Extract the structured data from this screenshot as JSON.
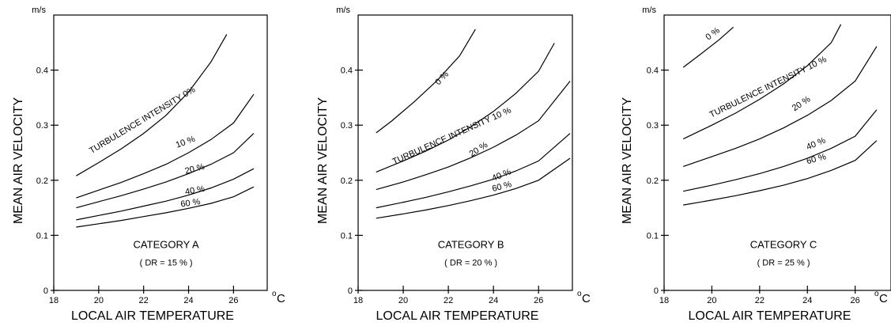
{
  "chart_data": [
    {
      "type": "line",
      "category": "CATEGORY  A",
      "dr": "( DR = 15 % )",
      "y_unit": "m/s",
      "x_unit": "C",
      "ylabel": "MEAN  AIR  VELOCITY",
      "xlabel": "LOCAL  AIR  TEMPERATURE",
      "xlim": [
        18,
        27.5
      ],
      "ylim": [
        0,
        0.5
      ],
      "xticks": [
        "18",
        "20",
        "22",
        "24",
        "26"
      ],
      "yticks": [
        "0",
        "0.1",
        "0.2",
        "0.3",
        "0.4"
      ],
      "series": [
        {
          "name": "TURBULENCE  INTENSITY  0%",
          "x": [
            19,
            20,
            21,
            22,
            23,
            24,
            25,
            25.7
          ],
          "y": [
            0.208,
            0.232,
            0.257,
            0.285,
            0.318,
            0.36,
            0.415,
            0.465
          ]
        },
        {
          "name": "10 %",
          "x": [
            19,
            20,
            21,
            22,
            23,
            24,
            25,
            26,
            26.9
          ],
          "y": [
            0.168,
            0.182,
            0.196,
            0.212,
            0.229,
            0.25,
            0.274,
            0.304,
            0.356
          ]
        },
        {
          "name": "20 %",
          "x": [
            19,
            20,
            21,
            22,
            23,
            24,
            25,
            26,
            26.9
          ],
          "y": [
            0.15,
            0.161,
            0.172,
            0.184,
            0.197,
            0.212,
            0.229,
            0.25,
            0.285
          ]
        },
        {
          "name": "40 %",
          "x": [
            19,
            20,
            21,
            22,
            23,
            24,
            25,
            26,
            26.9
          ],
          "y": [
            0.128,
            0.136,
            0.144,
            0.153,
            0.162,
            0.173,
            0.186,
            0.202,
            0.221
          ]
        },
        {
          "name": "60 %",
          "x": [
            19,
            20,
            21,
            22,
            23,
            24,
            25,
            26,
            26.9
          ],
          "y": [
            0.115,
            0.121,
            0.127,
            0.134,
            0.141,
            0.149,
            0.158,
            0.17,
            0.188
          ]
        }
      ]
    },
    {
      "type": "line",
      "category": "CATEGORY  B",
      "dr": "( DR = 20 % )",
      "y_unit": "m/s",
      "x_unit": "C",
      "ylabel": "MEAN  AIR  VELOCITY",
      "xlabel": "LOCAL  AIR  TEMPERATURE",
      "xlim": [
        18,
        27.5
      ],
      "ylim": [
        0,
        0.5
      ],
      "xticks": [
        "18",
        "20",
        "22",
        "24",
        "26"
      ],
      "yticks": [
        "0",
        "0.1",
        "0.2",
        "0.3",
        "0.4"
      ],
      "series": [
        {
          "name": "0 %",
          "x": [
            18.8,
            19.5,
            20.5,
            21.5,
            22.5,
            23.2
          ],
          "y": [
            0.286,
            0.308,
            0.343,
            0.381,
            0.426,
            0.474
          ]
        },
        {
          "name": "TURBULENCE  INTENSITY  10 %",
          "x": [
            18.8,
            20,
            21,
            22,
            23,
            24,
            25,
            26,
            26.7
          ],
          "y": [
            0.215,
            0.235,
            0.253,
            0.273,
            0.297,
            0.325,
            0.358,
            0.398,
            0.449
          ]
        },
        {
          "name": "20 %",
          "x": [
            18.8,
            20,
            21,
            22,
            23,
            24,
            25,
            26,
            27.4
          ],
          "y": [
            0.183,
            0.197,
            0.21,
            0.224,
            0.241,
            0.26,
            0.282,
            0.308,
            0.38
          ]
        },
        {
          "name": "40 %",
          "x": [
            18.8,
            20,
            21,
            22,
            23,
            24,
            25,
            26,
            27.4
          ],
          "y": [
            0.15,
            0.16,
            0.169,
            0.179,
            0.19,
            0.202,
            0.217,
            0.235,
            0.285
          ]
        },
        {
          "name": "60 %",
          "x": [
            18.8,
            20,
            21,
            22,
            23,
            24,
            25,
            26,
            27.4
          ],
          "y": [
            0.131,
            0.139,
            0.146,
            0.154,
            0.163,
            0.173,
            0.185,
            0.2,
            0.24
          ]
        }
      ]
    },
    {
      "type": "line",
      "category": "CATEGORY  C",
      "dr": "( DR = 25 % )",
      "y_unit": "m/s",
      "x_unit": "C",
      "ylabel": "MEAN  AIR  VELOCITY",
      "xlabel": "LOCAL  AIR  TEMPERATURE",
      "xlim": [
        18,
        27.5
      ],
      "ylim": [
        0,
        0.5
      ],
      "xticks": [
        "18",
        "20",
        "22",
        "24",
        "26"
      ],
      "yticks": [
        "0",
        "0.1",
        "0.2",
        "0.3",
        "0.4"
      ],
      "series": [
        {
          "name": "0 %",
          "x": [
            18.8,
            19.5,
            20.3,
            20.9
          ],
          "y": [
            0.405,
            0.428,
            0.455,
            0.478
          ]
        },
        {
          "name": "TURBULENCE  INTENSITY  10 %",
          "x": [
            18.8,
            20,
            21,
            22,
            23,
            24,
            25,
            25.4
          ],
          "y": [
            0.275,
            0.3,
            0.322,
            0.347,
            0.375,
            0.408,
            0.45,
            0.483
          ]
        },
        {
          "name": "20 %",
          "x": [
            18.8,
            20,
            21,
            22,
            23,
            24,
            25,
            26,
            26.9
          ],
          "y": [
            0.225,
            0.243,
            0.258,
            0.275,
            0.295,
            0.318,
            0.345,
            0.38,
            0.443
          ]
        },
        {
          "name": "40 %",
          "x": [
            18.8,
            20,
            21,
            22,
            23,
            24,
            25,
            26,
            26.9
          ],
          "y": [
            0.18,
            0.191,
            0.201,
            0.212,
            0.225,
            0.24,
            0.258,
            0.28,
            0.328
          ]
        },
        {
          "name": "60 %",
          "x": [
            18.8,
            20,
            21,
            22,
            23,
            24,
            25,
            26,
            26.9
          ],
          "y": [
            0.155,
            0.164,
            0.172,
            0.181,
            0.191,
            0.203,
            0.218,
            0.236,
            0.272
          ]
        }
      ]
    }
  ]
}
